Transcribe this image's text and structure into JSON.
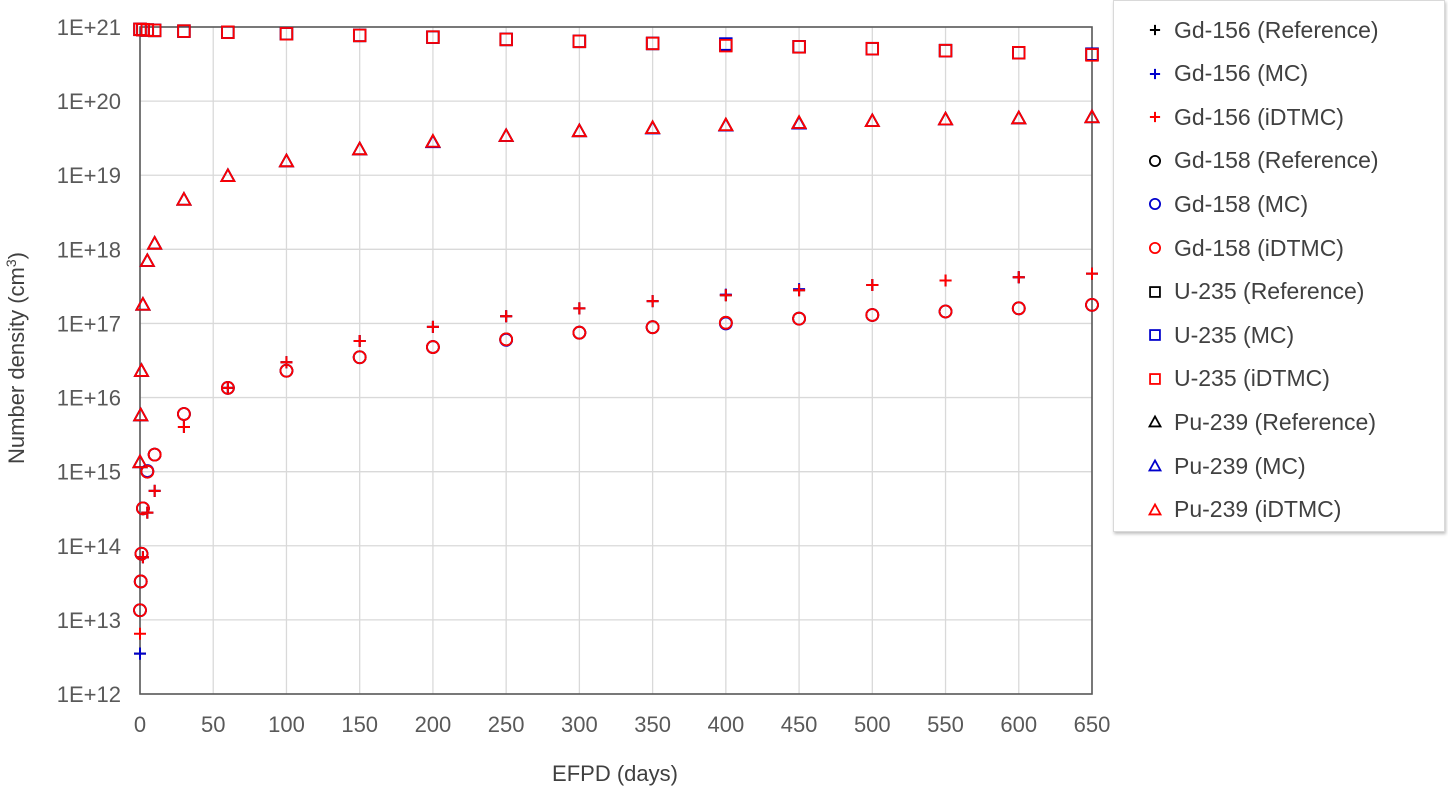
{
  "chart_data": {
    "type": "scatter",
    "xlabel": "EFPD (days)",
    "ylabel": "Number density (cm",
    "ylabel_sup": "3",
    "ylabel_close": ")",
    "yscale": "log",
    "xlim": [
      0,
      650
    ],
    "ylim": [
      1000000000000.0,
      1e+21
    ],
    "grid": true,
    "legend_position": "right",
    "x_ticks": [
      "0",
      "50",
      "100",
      "150",
      "200",
      "250",
      "300",
      "350",
      "400",
      "450",
      "500",
      "550",
      "600",
      "650"
    ],
    "y_ticks": [
      "1E+12",
      "1E+13",
      "1E+14",
      "1E+15",
      "1E+16",
      "1E+17",
      "1E+18",
      "1E+19",
      "1E+20",
      "1E+21"
    ],
    "series": [
      {
        "name": "Gd-156 (Reference)",
        "marker": "plus",
        "color": "#000000",
        "x": [
          0,
          2,
          5,
          10,
          30,
          60,
          100,
          150,
          200,
          250,
          300,
          350,
          400,
          450,
          500,
          550,
          600,
          650
        ],
        "y": [
          3500000000000.0,
          70000000000000.0,
          280000000000000.0,
          550000000000000.0,
          4000000000000000.0,
          1.35e+16,
          3e+16,
          5.8e+16,
          9e+16,
          1.25e+17,
          1.6e+17,
          2e+17,
          2.4e+17,
          2.8e+17,
          3.3e+17,
          3.8e+17,
          4.2e+17,
          4.7e+17
        ]
      },
      {
        "name": "Gd-156 (MC)",
        "marker": "plus",
        "color": "#0000cc",
        "x": [
          0,
          2,
          5,
          10,
          30,
          60,
          100,
          150,
          200,
          250,
          300,
          350,
          400,
          450,
          500,
          550,
          600,
          650
        ],
        "y": [
          3500000000000.0,
          70000000000000.0,
          280000000000000.0,
          550000000000000.0,
          4000000000000000.0,
          1.35e+16,
          3e+16,
          5.8e+16,
          9e+16,
          1.25e+17,
          1.6e+17,
          2e+17,
          2.45e+17,
          2.9e+17,
          3.3e+17,
          3.8e+17,
          4.2e+17,
          4.7e+17
        ]
      },
      {
        "name": "Gd-156 (iDTMC)",
        "marker": "plus",
        "color": "#ff0000",
        "x": [
          0,
          2,
          5,
          10,
          30,
          60,
          100,
          150,
          200,
          250,
          300,
          350,
          400,
          450,
          500,
          550,
          600,
          650
        ],
        "y": [
          6500000000000.0,
          70000000000000.0,
          280000000000000.0,
          550000000000000.0,
          4000000000000000.0,
          1.35e+16,
          3e+16,
          5.8e+16,
          9e+16,
          1.25e+17,
          1.6e+17,
          2e+17,
          2.4e+17,
          2.8e+17,
          3.3e+17,
          3.8e+17,
          4.2e+17,
          4.7e+17
        ]
      },
      {
        "name": "Gd-158 (Reference)",
        "marker": "circle",
        "color": "#000000",
        "x": [
          0,
          0.5,
          1,
          2,
          5,
          10,
          30,
          60,
          100,
          150,
          200,
          250,
          300,
          350,
          400,
          450,
          500,
          550,
          600,
          650
        ],
        "y": [
          13500000000000.0,
          33000000000000.0,
          78000000000000.0,
          320000000000000.0,
          1000000000000000.0,
          1700000000000000.0,
          6000000000000000.0,
          1.35e+16,
          2.3e+16,
          3.5e+16,
          4.8e+16,
          6.1e+16,
          7.5e+16,
          8.9e+16,
          1.02e+17,
          1.16e+17,
          1.3e+17,
          1.45e+17,
          1.6e+17,
          1.78e+17
        ]
      },
      {
        "name": "Gd-158 (MC)",
        "marker": "circle",
        "color": "#0000cc",
        "x": [
          0,
          0.5,
          1,
          2,
          5,
          10,
          30,
          60,
          100,
          150,
          200,
          250,
          300,
          350,
          400,
          450,
          500,
          550,
          600,
          650
        ],
        "y": [
          13500000000000.0,
          33000000000000.0,
          78000000000000.0,
          320000000000000.0,
          1020000000000000.0,
          1700000000000000.0,
          6000000000000000.0,
          1.35e+16,
          2.3e+16,
          3.5e+16,
          4.8e+16,
          6e+16,
          7.5e+16,
          8.9e+16,
          1e+17,
          1.16e+17,
          1.3e+17,
          1.45e+17,
          1.6e+17,
          1.78e+17
        ]
      },
      {
        "name": "Gd-158 (iDTMC)",
        "marker": "circle",
        "color": "#ff0000",
        "x": [
          0,
          0.5,
          1,
          2,
          5,
          10,
          30,
          60,
          100,
          150,
          200,
          250,
          300,
          350,
          400,
          450,
          500,
          550,
          600,
          650
        ],
        "y": [
          13500000000000.0,
          33000000000000.0,
          78000000000000.0,
          320000000000000.0,
          1000000000000000.0,
          1700000000000000.0,
          6000000000000000.0,
          1.35e+16,
          2.3e+16,
          3.5e+16,
          4.8e+16,
          6.1e+16,
          7.5e+16,
          8.9e+16,
          1.02e+17,
          1.16e+17,
          1.3e+17,
          1.45e+17,
          1.6e+17,
          1.78e+17
        ]
      },
      {
        "name": "U-235 (Reference)",
        "marker": "square",
        "color": "#000000",
        "x": [
          0,
          2,
          5,
          10,
          30,
          60,
          100,
          150,
          200,
          250,
          300,
          350,
          400,
          450,
          500,
          550,
          600,
          650
        ],
        "y": [
          9.3e+20,
          9.2e+20,
          9.1e+20,
          9e+20,
          8.8e+20,
          8.5e+20,
          8.1e+20,
          7.7e+20,
          7.3e+20,
          6.8e+20,
          6.4e+20,
          6e+20,
          5.7e+20,
          5.4e+20,
          5.1e+20,
          4.8e+20,
          4.5e+20,
          4.3e+20
        ]
      },
      {
        "name": "U-235 (MC)",
        "marker": "square",
        "color": "#0000cc",
        "x": [
          0,
          2,
          5,
          10,
          30,
          60,
          100,
          150,
          200,
          250,
          300,
          350,
          400,
          450,
          500,
          550,
          600,
          650
        ],
        "y": [
          9.3e+20,
          9.2e+20,
          9.1e+20,
          9e+20,
          8.8e+20,
          8.5e+20,
          8.1e+20,
          7.7e+20,
          7.3e+20,
          6.8e+20,
          6.4e+20,
          6e+20,
          5.9e+20,
          5.4e+20,
          5.1e+20,
          4.8e+20,
          4.5e+20,
          4.3e+20
        ]
      },
      {
        "name": "U-235 (iDTMC)",
        "marker": "square",
        "color": "#ff0000",
        "x": [
          0,
          2,
          5,
          10,
          30,
          60,
          100,
          150,
          200,
          250,
          300,
          350,
          400,
          450,
          500,
          550,
          600,
          650
        ],
        "y": [
          9.3e+20,
          9.2e+20,
          9.1e+20,
          9e+20,
          8.8e+20,
          8.5e+20,
          8.1e+20,
          7.7e+20,
          7.3e+20,
          6.8e+20,
          6.4e+20,
          6e+20,
          5.6e+20,
          5.4e+20,
          5.1e+20,
          4.8e+20,
          4.5e+20,
          4.2e+20
        ]
      },
      {
        "name": "Pu-239 (Reference)",
        "marker": "triangle",
        "color": "#000000",
        "x": [
          0,
          0.5,
          1,
          2,
          5,
          10,
          30,
          60,
          100,
          150,
          200,
          250,
          300,
          350,
          400,
          450,
          500,
          550,
          600,
          650
        ],
        "y": [
          1350000000000000.0,
          5800000000000000.0,
          2.3e+16,
          1.8e+17,
          7e+17,
          1.2e+18,
          4.7e+18,
          9.8e+18,
          1.55e+19,
          2.25e+19,
          2.85e+19,
          3.4e+19,
          3.95e+19,
          4.35e+19,
          4.75e+19,
          5.1e+19,
          5.4e+19,
          5.7e+19,
          5.9e+19,
          6.1e+19
        ]
      },
      {
        "name": "Pu-239 (MC)",
        "marker": "triangle",
        "color": "#0000cc",
        "x": [
          0,
          0.5,
          1,
          2,
          5,
          10,
          30,
          60,
          100,
          150,
          200,
          250,
          300,
          350,
          400,
          450,
          500,
          550,
          600,
          650
        ],
        "y": [
          1350000000000000.0,
          5800000000000000.0,
          2.3e+16,
          1.8e+17,
          7e+17,
          1.2e+18,
          4.7e+18,
          9.8e+18,
          1.55e+19,
          2.25e+19,
          2.8e+19,
          3.4e+19,
          3.95e+19,
          4.3e+19,
          4.7e+19,
          5e+19,
          5.4e+19,
          5.7e+19,
          5.9e+19,
          6.1e+19
        ]
      },
      {
        "name": "Pu-239 (iDTMC)",
        "marker": "triangle",
        "color": "#ff0000",
        "x": [
          0,
          0.5,
          1,
          2,
          5,
          10,
          30,
          60,
          100,
          150,
          200,
          250,
          300,
          350,
          400,
          450,
          500,
          550,
          600,
          650
        ],
        "y": [
          1350000000000000.0,
          5800000000000000.0,
          2.3e+16,
          1.8e+17,
          7e+17,
          1.2e+18,
          4.7e+18,
          9.8e+18,
          1.55e+19,
          2.25e+19,
          2.85e+19,
          3.4e+19,
          3.95e+19,
          4.35e+19,
          4.75e+19,
          5.1e+19,
          5.4e+19,
          5.7e+19,
          5.9e+19,
          6.1e+19
        ]
      }
    ]
  }
}
